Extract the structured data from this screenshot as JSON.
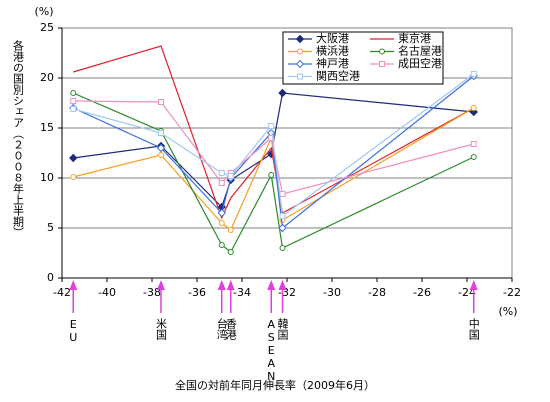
{
  "chart_data": {
    "type": "line",
    "y_label": "各港の国別シェア（２００８年上半期）",
    "y_unit": "(%)",
    "x_label": "全国の対前年同月伸長率（2009年6月）",
    "x_unit": "(%)",
    "x": [
      -41.5,
      -37.6,
      -34.9,
      -34.5,
      -32.7,
      -32.2,
      -23.7
    ],
    "x_labels": [
      "EU",
      "米国",
      "台湾",
      "香港",
      "ASEAN",
      "韓国",
      "中国"
    ],
    "series": [
      {
        "name": "大阪港",
        "color": "#1f2a7a",
        "marker": "filled-diamond",
        "values": [
          12.0,
          13.2,
          7.1,
          9.8,
          12.4,
          18.5,
          16.6
        ]
      },
      {
        "name": "東京港",
        "color": "#e0202a",
        "marker": "none",
        "values": [
          20.6,
          23.2,
          6.0,
          8.0,
          13.0,
          6.5,
          17.0
        ]
      },
      {
        "name": "横浜港",
        "color": "#f5a020",
        "marker": "circle",
        "values": [
          10.1,
          12.3,
          5.5,
          4.8,
          14.0,
          5.8,
          17.0
        ]
      },
      {
        "name": "名古屋港",
        "color": "#2a8a2a",
        "marker": "circle",
        "values": [
          18.5,
          14.7,
          3.3,
          2.6,
          10.3,
          3.0,
          12.1
        ]
      },
      {
        "name": "神戸港",
        "color": "#3a6ee0",
        "marker": "diamond",
        "values": [
          17.0,
          13.0,
          6.5,
          10.0,
          14.5,
          5.0,
          20.2
        ]
      },
      {
        "name": "成田空港",
        "color": "#f090c0",
        "marker": "square",
        "values": [
          17.7,
          17.6,
          9.5,
          10.5,
          14.0,
          8.4,
          13.4
        ]
      },
      {
        "name": "関西空港",
        "color": "#a0c8f0",
        "marker": "square",
        "values": [
          16.9,
          14.5,
          10.5,
          10.2,
          15.2,
          6.2,
          20.4
        ]
      }
    ],
    "xlim": [
      -42,
      -22
    ],
    "xticks": [
      -42,
      -40,
      -38,
      -36,
      -34,
      -32,
      -30,
      -28,
      -26,
      -24,
      -22
    ],
    "ylim": [
      0,
      25
    ],
    "yticks": [
      0,
      5,
      10,
      15,
      20,
      25
    ],
    "grid": true,
    "legend": "top-right",
    "arrow_color": "#e040e0"
  }
}
